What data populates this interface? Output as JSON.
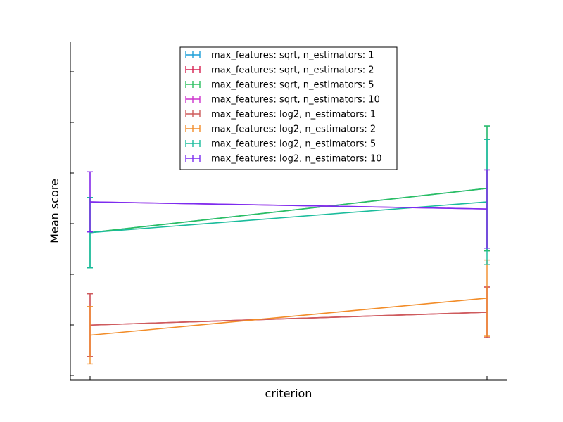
{
  "chart_data": {
    "type": "line",
    "title": "",
    "xlabel": "criterion",
    "ylabel": "Mean score",
    "categories": [
      "",
      ""
    ],
    "ylim": [
      0,
      100
    ],
    "grid": false,
    "legend_position": "top-center",
    "error_bars": true,
    "series": [
      {
        "name": "max_features: sqrt, n_estimators: 1",
        "color": "#1f9fd8",
        "values": [
          43.6,
          56.7
        ],
        "err": [
          10.4,
          18.5
        ]
      },
      {
        "name": "max_features: sqrt, n_estimators: 2",
        "color": "#d62050",
        "values": [
          16.2,
          20.0
        ],
        "err": [
          9.3,
          7.5
        ]
      },
      {
        "name": "max_features: sqrt, n_estimators: 5",
        "color": "#2bbf5f",
        "values": [
          43.6,
          56.7
        ],
        "err": [
          10.4,
          18.5
        ]
      },
      {
        "name": "max_features: sqrt, n_estimators: 10",
        "color": "#cc33cc",
        "values": [
          52.7,
          50.6
        ],
        "err": [
          8.9,
          11.6
        ]
      },
      {
        "name": "max_features: log2, n_estimators: 1",
        "color": "#cd5c5c",
        "values": [
          16.2,
          20.0
        ],
        "err": [
          9.3,
          7.5
        ]
      },
      {
        "name": "max_features: log2, n_estimators: 2",
        "color": "#f28c28",
        "values": [
          13.2,
          24.2
        ],
        "err": [
          8.5,
          11.3
        ]
      },
      {
        "name": "max_features: log2, n_estimators: 5",
        "color": "#1abc9c",
        "values": [
          43.6,
          52.7
        ],
        "err": [
          10.4,
          18.5
        ]
      },
      {
        "name": "max_features: log2, n_estimators: 10",
        "color": "#7b2cf0",
        "values": [
          52.7,
          50.6
        ],
        "err": [
          8.9,
          11.6
        ]
      }
    ]
  }
}
